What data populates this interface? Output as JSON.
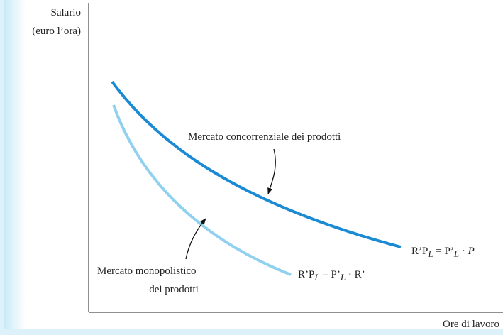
{
  "axes": {
    "y_label": [
      "Salario",
      "(euro l’ora)"
    ],
    "x_label": "Ore di lavoro"
  },
  "curves": [
    {
      "label": [
        "Mercato concorrenziale dei prodotti"
      ],
      "equation": [
        "R’P",
        "L",
        " = P’",
        "L",
        " · ",
        "P"
      ]
    },
    {
      "label": [
        "Mercato monopolistico",
        "dei prodotti"
      ],
      "equation": [
        "R’P",
        "L",
        " = P’",
        "L",
        " · R’"
      ]
    }
  ]
}
